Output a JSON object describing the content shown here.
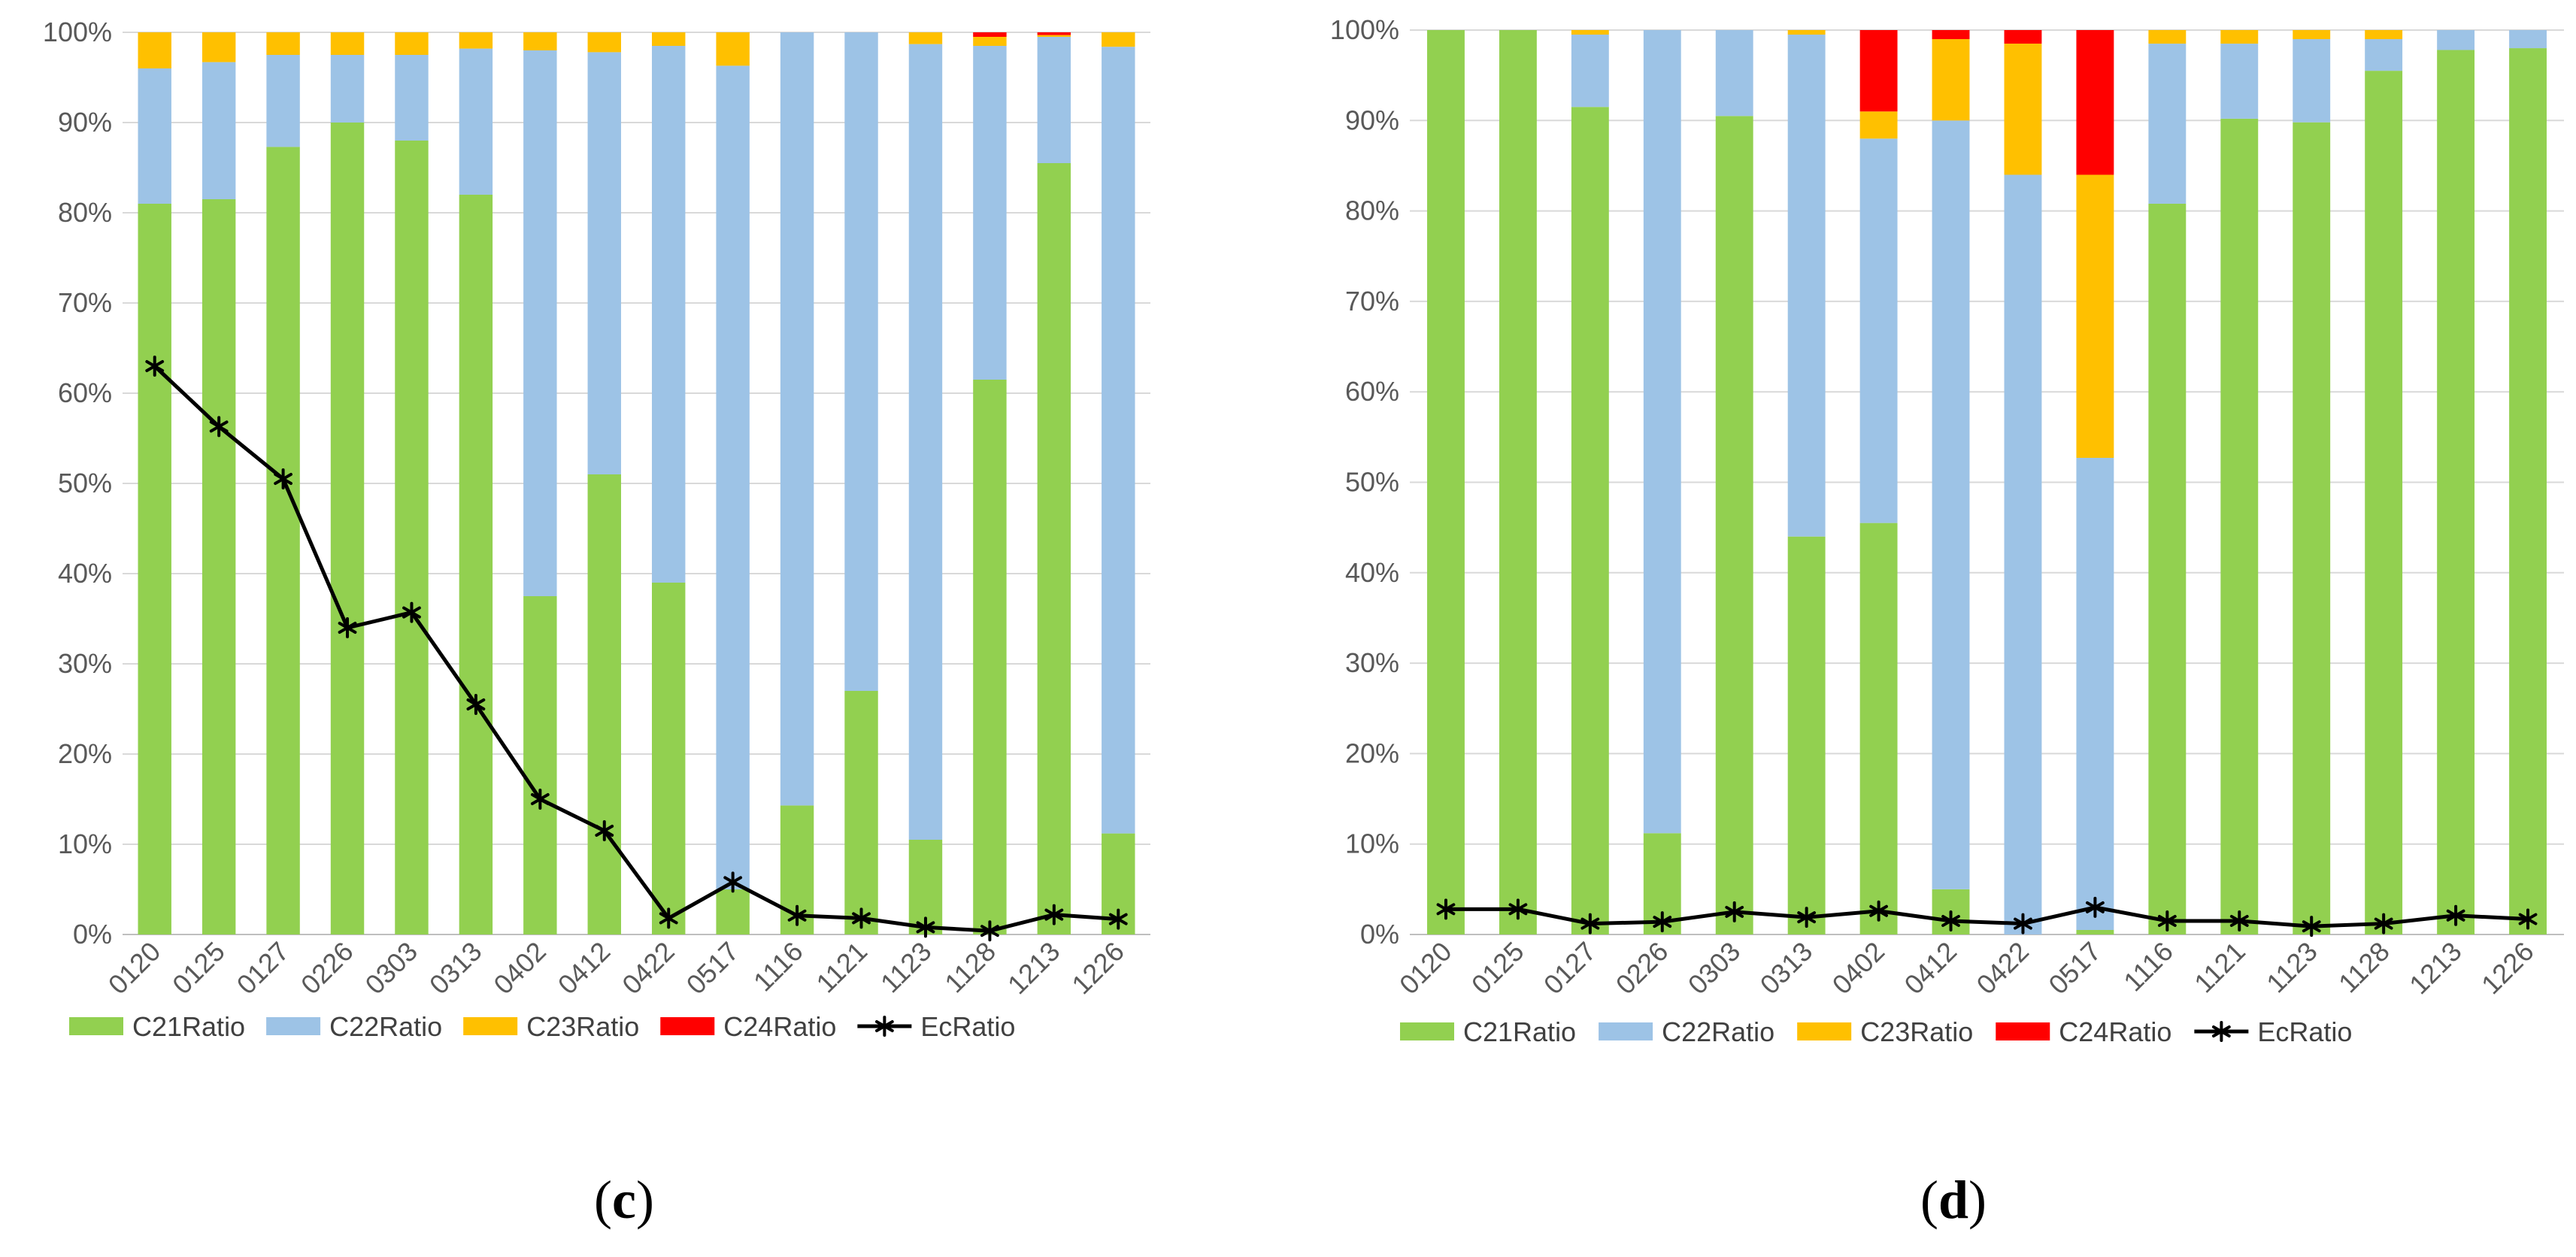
{
  "colors": {
    "C21Ratio": "#92d050",
    "C22Ratio": "#9dc3e6",
    "C23Ratio": "#ffc000",
    "C24Ratio": "#ff0000",
    "EcRatio": "#000000",
    "grid": "#d9d9d9",
    "axis": "#bfbfbf"
  },
  "chart_data": [
    {
      "type": "bar",
      "stacked": true,
      "panel_label": {
        "open": "(",
        "letter": "c",
        "close": ")"
      },
      "categories": [
        "0120",
        "0125",
        "0127",
        "0226",
        "0303",
        "0313",
        "0402",
        "0412",
        "0422",
        "0517",
        "1116",
        "1121",
        "1123",
        "1128",
        "1213",
        "1226"
      ],
      "series": [
        {
          "name": "C21Ratio",
          "type": "bar",
          "values": [
            81,
            81.5,
            87.3,
            90,
            88,
            82,
            37.5,
            51,
            39,
            5,
            14.3,
            27,
            10.5,
            61.5,
            85.5,
            11.2
          ]
        },
        {
          "name": "C22Ratio",
          "type": "bar",
          "values": [
            15,
            15.2,
            10.2,
            7.5,
            9.5,
            16.2,
            60.5,
            46.8,
            59.5,
            91.3,
            85.7,
            73,
            88.2,
            37,
            14,
            87.2
          ]
        },
        {
          "name": "C23Ratio",
          "type": "bar",
          "values": [
            4,
            3.3,
            2.5,
            2.5,
            2.5,
            1.8,
            2,
            2.2,
            1.5,
            3.7,
            0,
            0,
            1.3,
            1,
            0.2,
            1.6
          ]
        },
        {
          "name": "C24Ratio",
          "type": "bar",
          "values": [
            0,
            0,
            0,
            0,
            0,
            0,
            0,
            0,
            0,
            0,
            0,
            0,
            0,
            0.5,
            0.3,
            0
          ]
        },
        {
          "name": "EcRatio",
          "type": "line",
          "values": [
            63,
            56.3,
            50.5,
            34,
            35.7,
            25.5,
            15,
            11.5,
            1.8,
            5.8,
            2.1,
            1.8,
            0.8,
            0.4,
            2.2,
            1.7
          ]
        }
      ],
      "ylim": [
        0,
        100
      ],
      "yticks": [
        "0%",
        "10%",
        "20%",
        "30%",
        "40%",
        "50%",
        "60%",
        "70%",
        "80%",
        "90%",
        "100%"
      ],
      "grid": true,
      "legend": "bottom"
    },
    {
      "type": "bar",
      "stacked": true,
      "panel_label": {
        "open": "(",
        "letter": "d",
        "close": ")"
      },
      "categories": [
        "0120",
        "0125",
        "0127",
        "0226",
        "0303",
        "0313",
        "0402",
        "0412",
        "0422",
        "0517",
        "1116",
        "1121",
        "1123",
        "1128",
        "1213",
        "1226"
      ],
      "series": [
        {
          "name": "C21Ratio",
          "type": "bar",
          "values": [
            100,
            100,
            91.5,
            11.2,
            90.5,
            44,
            45.5,
            5,
            0,
            0.5,
            80.8,
            90.2,
            89.8,
            95.5,
            97.8,
            98
          ]
        },
        {
          "name": "C22Ratio",
          "type": "bar",
          "values": [
            0,
            0,
            8,
            88.8,
            9.5,
            55.5,
            42.5,
            85,
            84,
            52.2,
            17.7,
            8.3,
            9.2,
            3.5,
            2.2,
            2
          ]
        },
        {
          "name": "C23Ratio",
          "type": "bar",
          "values": [
            0,
            0,
            0.5,
            0,
            0,
            0.5,
            3,
            9,
            14.5,
            31.3,
            1.5,
            1.5,
            1,
            1,
            0,
            0
          ]
        },
        {
          "name": "C24Ratio",
          "type": "bar",
          "values": [
            0,
            0,
            0,
            0,
            0,
            0,
            9,
            1,
            1.5,
            16,
            0,
            0,
            0,
            0,
            0,
            0
          ]
        },
        {
          "name": "EcRatio",
          "type": "line",
          "values": [
            2.8,
            2.8,
            1.2,
            1.4,
            2.5,
            1.9,
            2.6,
            1.5,
            1.2,
            3,
            1.5,
            1.5,
            0.9,
            1.2,
            2.1,
            1.7
          ]
        }
      ],
      "ylim": [
        0,
        100
      ],
      "yticks": [
        "0%",
        "10%",
        "20%",
        "30%",
        "40%",
        "50%",
        "60%",
        "70%",
        "80%",
        "90%",
        "100%"
      ],
      "grid": true,
      "legend": "bottom"
    }
  ]
}
